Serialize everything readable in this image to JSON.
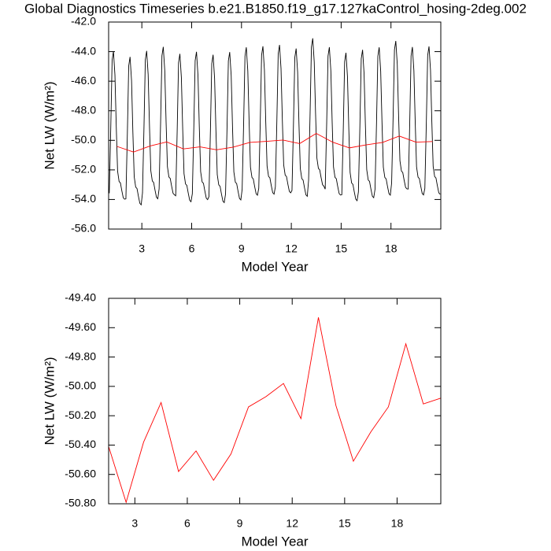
{
  "chart_data": [
    {
      "type": "line",
      "title": "Global Diagnostics Timeseries b.e21.B1850.f19_g17.127kaControl_hosing-2deg.002",
      "xlabel": "Model Year",
      "ylabel": "Net LW (W/m²)",
      "xlim": [
        1,
        21
      ],
      "xticks": [
        3,
        6,
        9,
        12,
        15,
        18
      ],
      "ylim": [
        -56,
        -42
      ],
      "yticks": [
        {
          "value": -56,
          "label": "-56.0"
        },
        {
          "value": -54,
          "label": "-54.0"
        },
        {
          "value": -52,
          "label": "-52.0"
        },
        {
          "value": -50,
          "label": "-50.0"
        },
        {
          "value": -48,
          "label": "-48.0"
        },
        {
          "value": -46,
          "label": "-46.0"
        },
        {
          "value": -44,
          "label": "-44.0"
        },
        {
          "value": -42,
          "label": "-42.0"
        }
      ],
      "series": [
        {
          "color": "#000000",
          "x": [
            1.04,
            1.13,
            1.21,
            1.29,
            1.38,
            1.46,
            1.54,
            1.63,
            1.71,
            1.79,
            1.88,
            1.96,
            2.04,
            2.13,
            2.21,
            2.29,
            2.38,
            2.46,
            2.54,
            2.63,
            2.71,
            2.79,
            2.88,
            2.96,
            3.04,
            3.13,
            3.21,
            3.29,
            3.38,
            3.46,
            3.54,
            3.63,
            3.71,
            3.79,
            3.88,
            3.96,
            4.04,
            4.13,
            4.21,
            4.29,
            4.38,
            4.46,
            4.54,
            4.63,
            4.71,
            4.79,
            4.88,
            4.96,
            5.04,
            5.13,
            5.21,
            5.29,
            5.38,
            5.46,
            5.54,
            5.63,
            5.71,
            5.79,
            5.88,
            5.96,
            6.04,
            6.13,
            6.21,
            6.29,
            6.38,
            6.46,
            6.54,
            6.63,
            6.71,
            6.79,
            6.88,
            6.96,
            7.04,
            7.13,
            7.21,
            7.29,
            7.38,
            7.46,
            7.54,
            7.63,
            7.71,
            7.79,
            7.88,
            7.96,
            8.04,
            8.13,
            8.21,
            8.29,
            8.38,
            8.46,
            8.54,
            8.63,
            8.71,
            8.79,
            8.88,
            8.96,
            9.04,
            9.13,
            9.21,
            9.29,
            9.38,
            9.46,
            9.54,
            9.63,
            9.71,
            9.79,
            9.88,
            9.96,
            10.04,
            10.13,
            10.21,
            10.29,
            10.38,
            10.46,
            10.54,
            10.63,
            10.71,
            10.79,
            10.88,
            10.96,
            11.04,
            11.13,
            11.21,
            11.29,
            11.38,
            11.46,
            11.54,
            11.63,
            11.71,
            11.79,
            11.88,
            11.96,
            12.04,
            12.13,
            12.21,
            12.29,
            12.38,
            12.46,
            12.54,
            12.63,
            12.71,
            12.79,
            12.88,
            12.96,
            13.04,
            13.13,
            13.21,
            13.29,
            13.38,
            13.46,
            13.54,
            13.63,
            13.71,
            13.79,
            13.88,
            13.96,
            14.04,
            14.13,
            14.21,
            14.29,
            14.38,
            14.46,
            14.54,
            14.63,
            14.71,
            14.79,
            14.88,
            14.96,
            15.04,
            15.13,
            15.21,
            15.29,
            15.38,
            15.46,
            15.54,
            15.63,
            15.71,
            15.79,
            15.88,
            15.96,
            16.04,
            16.13,
            16.21,
            16.29,
            16.38,
            16.46,
            16.54,
            16.63,
            16.71,
            16.79,
            16.88,
            16.96,
            17.04,
            17.13,
            17.21,
            17.29,
            17.38,
            17.46,
            17.54,
            17.63,
            17.71,
            17.79,
            17.88,
            17.96,
            18.04,
            18.13,
            18.21,
            18.29,
            18.38,
            18.46,
            18.54,
            18.63,
            18.71,
            18.79,
            18.88,
            18.96,
            19.04,
            19.13,
            19.21,
            19.29,
            19.38,
            19.46,
            19.54,
            19.63,
            19.71,
            19.79,
            19.88,
            19.96,
            20.04,
            20.13,
            20.21,
            20.29,
            20.38,
            20.46,
            20.54,
            20.63,
            20.71,
            20.79,
            20.88,
            20.96
          ],
          "values": [
            -53.58,
            -49.08,
            -44.58,
            -43.98,
            -45.58,
            -49.08,
            -52.08,
            -52.78,
            -52.88,
            -53.38,
            -53.88,
            -53.98,
            -53.96,
            -49.46,
            -44.96,
            -44.36,
            -45.96,
            -49.46,
            -52.46,
            -53.16,
            -53.26,
            -53.76,
            -54.26,
            -54.36,
            -53.55,
            -49.05,
            -44.55,
            -43.95,
            -45.55,
            -49.05,
            -52.05,
            -52.75,
            -52.85,
            -53.35,
            -53.85,
            -53.95,
            -53.28,
            -48.78,
            -44.28,
            -43.68,
            -45.28,
            -48.78,
            -51.78,
            -52.48,
            -52.58,
            -53.08,
            -53.58,
            -53.68,
            -53.75,
            -49.25,
            -44.75,
            -44.15,
            -45.75,
            -49.25,
            -52.25,
            -52.95,
            -53.05,
            -53.55,
            -54.05,
            -54.15,
            -53.61,
            -49.11,
            -44.61,
            -44.01,
            -45.61,
            -49.11,
            -52.11,
            -52.81,
            -52.91,
            -53.41,
            -53.91,
            -54.01,
            -53.81,
            -49.31,
            -44.81,
            -44.21,
            -45.81,
            -49.31,
            -52.31,
            -53.01,
            -53.11,
            -53.61,
            -54.11,
            -54.21,
            -53.63,
            -49.13,
            -44.63,
            -44.03,
            -45.63,
            -49.13,
            -52.13,
            -52.83,
            -52.93,
            -53.43,
            -53.93,
            -54.03,
            -53.31,
            -48.81,
            -44.31,
            -43.71,
            -45.31,
            -48.81,
            -51.81,
            -52.51,
            -52.61,
            -53.11,
            -53.61,
            -53.71,
            -53.24,
            -48.74,
            -44.24,
            -43.64,
            -45.24,
            -48.74,
            -51.74,
            -52.44,
            -52.54,
            -53.04,
            -53.54,
            -53.64,
            -53.15,
            -48.65,
            -44.15,
            -43.55,
            -45.15,
            -48.65,
            -51.65,
            -52.35,
            -52.45,
            -52.95,
            -53.45,
            -53.55,
            -53.39,
            -48.89,
            -44.39,
            -43.79,
            -45.39,
            -48.89,
            -51.89,
            -52.59,
            -52.69,
            -53.19,
            -53.69,
            -53.79,
            -52.7,
            -48.2,
            -43.7,
            -43.1,
            -44.7,
            -48.2,
            -51.2,
            -51.9,
            -52.0,
            -52.5,
            -53.0,
            -53.1,
            -53.3,
            -48.8,
            -44.3,
            -43.7,
            -45.3,
            -48.8,
            -51.8,
            -52.5,
            -52.6,
            -53.1,
            -53.6,
            -53.7,
            -53.68,
            -49.18,
            -44.68,
            -44.08,
            -45.68,
            -49.18,
            -52.18,
            -52.88,
            -52.98,
            -53.48,
            -53.98,
            -54.08,
            -53.48,
            -48.98,
            -44.48,
            -43.88,
            -45.48,
            -48.98,
            -51.98,
            -52.68,
            -52.78,
            -53.28,
            -53.78,
            -53.88,
            -53.31,
            -48.81,
            -44.31,
            -43.71,
            -45.31,
            -48.81,
            -51.81,
            -52.51,
            -52.61,
            -53.11,
            -53.61,
            -53.71,
            -52.88,
            -48.38,
            -43.88,
            -43.28,
            -44.88,
            -48.38,
            -51.38,
            -52.08,
            -52.18,
            -52.68,
            -53.18,
            -53.28,
            -53.29,
            -48.79,
            -44.29,
            -43.69,
            -45.29,
            -48.79,
            -51.79,
            -52.49,
            -52.59,
            -53.09,
            -53.59,
            -53.69,
            -53.25,
            -48.75,
            -44.25,
            -43.65,
            -45.25,
            -48.75,
            -51.75,
            -52.45,
            -52.55,
            -53.05,
            -53.55,
            -53.65
          ]
        },
        {
          "color": "#ff0000",
          "x": [
            1.5,
            2.5,
            3.5,
            4.5,
            5.5,
            6.5,
            7.5,
            8.5,
            9.5,
            10.5,
            11.5,
            12.5,
            13.5,
            14.5,
            15.5,
            16.5,
            17.5,
            18.5,
            19.5,
            20.5
          ],
          "values": [
            -50.41,
            -50.79,
            -50.38,
            -50.11,
            -50.58,
            -50.44,
            -50.64,
            -50.46,
            -50.14,
            -50.07,
            -49.98,
            -50.22,
            -49.53,
            -50.13,
            -50.51,
            -50.31,
            -50.14,
            -49.71,
            -50.12,
            -50.08
          ]
        }
      ]
    },
    {
      "type": "line",
      "xlabel": "Model Year",
      "ylabel": "Net LW (W/m²)",
      "xlim": [
        1.5,
        20.5
      ],
      "xticks": [
        3,
        6,
        9,
        12,
        15,
        18
      ],
      "ylim": [
        -50.8,
        -49.4
      ],
      "yticks": [
        {
          "value": -50.8,
          "label": "-50.80"
        },
        {
          "value": -50.6,
          "label": "-50.60"
        },
        {
          "value": -50.4,
          "label": "-50.40"
        },
        {
          "value": -50.2,
          "label": "-50.20"
        },
        {
          "value": -50.0,
          "label": "-50.00"
        },
        {
          "value": -49.8,
          "label": "-49.80"
        },
        {
          "value": -49.6,
          "label": "-49.60"
        },
        {
          "value": -49.4,
          "label": "-49.40"
        }
      ],
      "series": [
        {
          "color": "#ff0000",
          "x": [
            1.5,
            2.5,
            3.5,
            4.5,
            5.5,
            6.5,
            7.5,
            8.5,
            9.5,
            10.5,
            11.5,
            12.5,
            13.5,
            14.5,
            15.5,
            16.5,
            17.5,
            18.5,
            19.5,
            20.5
          ],
          "values": [
            -50.41,
            -50.79,
            -50.38,
            -50.11,
            -50.58,
            -50.44,
            -50.64,
            -50.46,
            -50.14,
            -50.07,
            -49.98,
            -50.22,
            -49.53,
            -50.13,
            -50.51,
            -50.31,
            -50.14,
            -49.71,
            -50.12,
            -50.08
          ]
        }
      ]
    }
  ]
}
